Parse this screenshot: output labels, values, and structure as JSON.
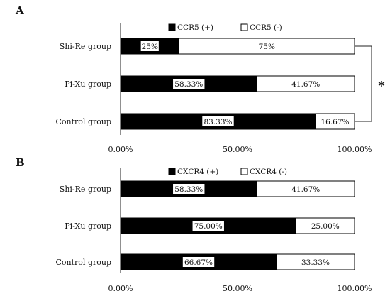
{
  "chart_data": [
    {
      "type": "bar",
      "orientation": "horizontal",
      "stacked": true,
      "panel_label": "A",
      "categories": [
        "Shi-Re group",
        "Pi-Xu group",
        "Control group"
      ],
      "series": [
        {
          "name": "CCR5 (+)",
          "color": "#000000",
          "values": [
            25,
            58.33,
            83.33
          ],
          "labels": [
            "25%",
            "58.33%",
            "83.33%"
          ]
        },
        {
          "name": "CCR5 (-)",
          "color": "#ffffff",
          "values": [
            75,
            41.67,
            16.67
          ],
          "labels": [
            "75%",
            "41.67%",
            "16.67%"
          ]
        }
      ],
      "xlim": [
        0,
        100
      ],
      "xticks": [
        "0.00%",
        "50.00%",
        "100.00%"
      ],
      "legend": "top",
      "grid": false,
      "annotation": {
        "text": "*",
        "between": [
          "Shi-Re group",
          "Control group"
        ]
      }
    },
    {
      "type": "bar",
      "orientation": "horizontal",
      "stacked": true,
      "panel_label": "B",
      "categories": [
        "Shi-Re group",
        "Pi-Xu group",
        "Control group"
      ],
      "series": [
        {
          "name": "CXCR4 (+)",
          "color": "#000000",
          "values": [
            58.33,
            75,
            66.67
          ],
          "labels": [
            "58.33%",
            "75.00%",
            "66.67%"
          ]
        },
        {
          "name": "CXCR4 (-)",
          "color": "#ffffff",
          "values": [
            41.67,
            25,
            33.33
          ],
          "labels": [
            "41.67%",
            "25.00%",
            "33.33%"
          ]
        }
      ],
      "xlim": [
        0,
        100
      ],
      "xticks": [
        "0.00%",
        "50.00%",
        "100.00%"
      ],
      "legend": "top",
      "grid": false
    }
  ]
}
